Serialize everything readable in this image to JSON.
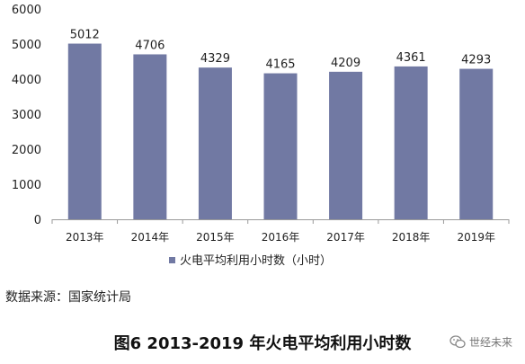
{
  "chart_data": {
    "type": "bar",
    "categories": [
      "2013年",
      "2014年",
      "2015年",
      "2016年",
      "2017年",
      "2018年",
      "2019年"
    ],
    "series": [
      {
        "name": "火电平均利用小时数（小时）",
        "values": [
          5012,
          4706,
          4329,
          4165,
          4209,
          4361,
          4293
        ]
      }
    ],
    "data_labels": [
      "5012",
      "4706",
      "4329",
      "4165",
      "4209",
      "4361",
      "4293"
    ],
    "y_ticks": [
      0,
      1000,
      2000,
      3000,
      4000,
      5000,
      6000
    ],
    "ylim": [
      0,
      6000
    ],
    "grid": false,
    "legend_position": "bottom",
    "bar_color": "#7179a3"
  },
  "source_text": "数据来源：国家统计局",
  "caption": "图6 2013-2019 年火电平均利用小时数",
  "watermark": {
    "icon": "wechat-icon",
    "text": "世经未来"
  }
}
